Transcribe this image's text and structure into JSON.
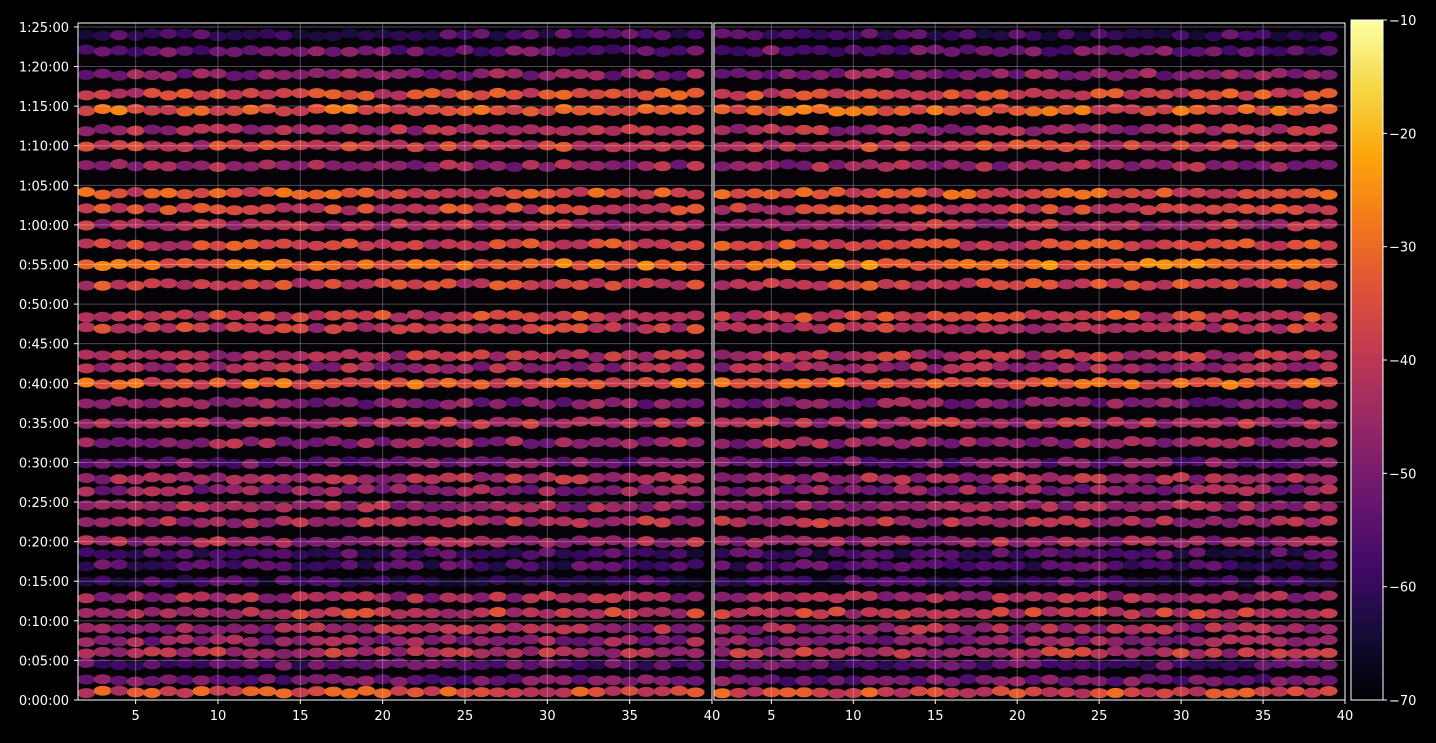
{
  "chart_data": {
    "type": "heatmap",
    "title": "",
    "xlabel": "",
    "ylabel": "",
    "panels": [
      {
        "name": "",
        "x_range": [
          1.5,
          40
        ],
        "x_ticks": [
          5,
          10,
          15,
          20,
          25,
          30,
          35,
          40
        ]
      },
      {
        "name": "",
        "x_range": [
          1.5,
          40
        ],
        "x_ticks": [
          5,
          10,
          15,
          20,
          25,
          30,
          35,
          40
        ]
      }
    ],
    "y_range_seconds": [
      0,
      5130
    ],
    "y_ticks": [
      {
        "seconds": 0,
        "label": "0:00:00"
      },
      {
        "seconds": 300,
        "label": "0:05:00"
      },
      {
        "seconds": 600,
        "label": "0:10:00"
      },
      {
        "seconds": 900,
        "label": "0:15:00"
      },
      {
        "seconds": 1200,
        "label": "0:20:00"
      },
      {
        "seconds": 1500,
        "label": "0:25:00"
      },
      {
        "seconds": 1800,
        "label": "0:30:00"
      },
      {
        "seconds": 2100,
        "label": "0:35:00"
      },
      {
        "seconds": 2400,
        "label": "0:40:00"
      },
      {
        "seconds": 2700,
        "label": "0:45:00"
      },
      {
        "seconds": 3000,
        "label": "0:50:00"
      },
      {
        "seconds": 3300,
        "label": "0:55:00"
      },
      {
        "seconds": 3600,
        "label": "1:00:00"
      },
      {
        "seconds": 3900,
        "label": "1:05:00"
      },
      {
        "seconds": 4200,
        "label": "1:10:00"
      },
      {
        "seconds": 4500,
        "label": "1:15:00"
      },
      {
        "seconds": 4800,
        "label": "1:20:00"
      },
      {
        "seconds": 5100,
        "label": "1:25:00"
      }
    ],
    "grid": true,
    "colormap": "inferno",
    "colorbar": {
      "range": [
        -70,
        -10
      ],
      "ticks": [
        -10,
        -20,
        -30,
        -40,
        -50,
        -60,
        -70
      ],
      "tick_labels": [
        "−10",
        "−20",
        "−30",
        "−40",
        "−50",
        "−60",
        "−70"
      ]
    },
    "bands": [
      {
        "seconds": 60,
        "value": -36
      },
      {
        "seconds": 150,
        "value": -52
      },
      {
        "seconds": 270,
        "value": -55
      },
      {
        "seconds": 360,
        "value": -42
      },
      {
        "seconds": 450,
        "value": -48
      },
      {
        "seconds": 540,
        "value": -45
      },
      {
        "seconds": 660,
        "value": -40
      },
      {
        "seconds": 780,
        "value": -45
      },
      {
        "seconds": 900,
        "value": -60
      },
      {
        "seconds": 1020,
        "value": -57
      },
      {
        "seconds": 1110,
        "value": -58
      },
      {
        "seconds": 1200,
        "value": -45
      },
      {
        "seconds": 1350,
        "value": -43
      },
      {
        "seconds": 1470,
        "value": -46
      },
      {
        "seconds": 1590,
        "value": -48
      },
      {
        "seconds": 1680,
        "value": -44
      },
      {
        "seconds": 1800,
        "value": -52
      },
      {
        "seconds": 1950,
        "value": -46
      },
      {
        "seconds": 2100,
        "value": -43
      },
      {
        "seconds": 2250,
        "value": -49
      },
      {
        "seconds": 2400,
        "value": -33
      },
      {
        "seconds": 2520,
        "value": -45
      },
      {
        "seconds": 2610,
        "value": -42
      },
      {
        "seconds": 2820,
        "value": -40
      },
      {
        "seconds": 2910,
        "value": -38
      },
      {
        "seconds": 3150,
        "value": -38
      },
      {
        "seconds": 3300,
        "value": -30
      },
      {
        "seconds": 3450,
        "value": -37
      },
      {
        "seconds": 3600,
        "value": -43
      },
      {
        "seconds": 3720,
        "value": -38
      },
      {
        "seconds": 3840,
        "value": -35
      },
      {
        "seconds": 4050,
        "value": -46
      },
      {
        "seconds": 4200,
        "value": -39
      },
      {
        "seconds": 4320,
        "value": -44
      },
      {
        "seconds": 4470,
        "value": -33
      },
      {
        "seconds": 4590,
        "value": -37
      },
      {
        "seconds": 4740,
        "value": -49
      },
      {
        "seconds": 4920,
        "value": -53
      },
      {
        "seconds": 5040,
        "value": -58
      }
    ]
  }
}
